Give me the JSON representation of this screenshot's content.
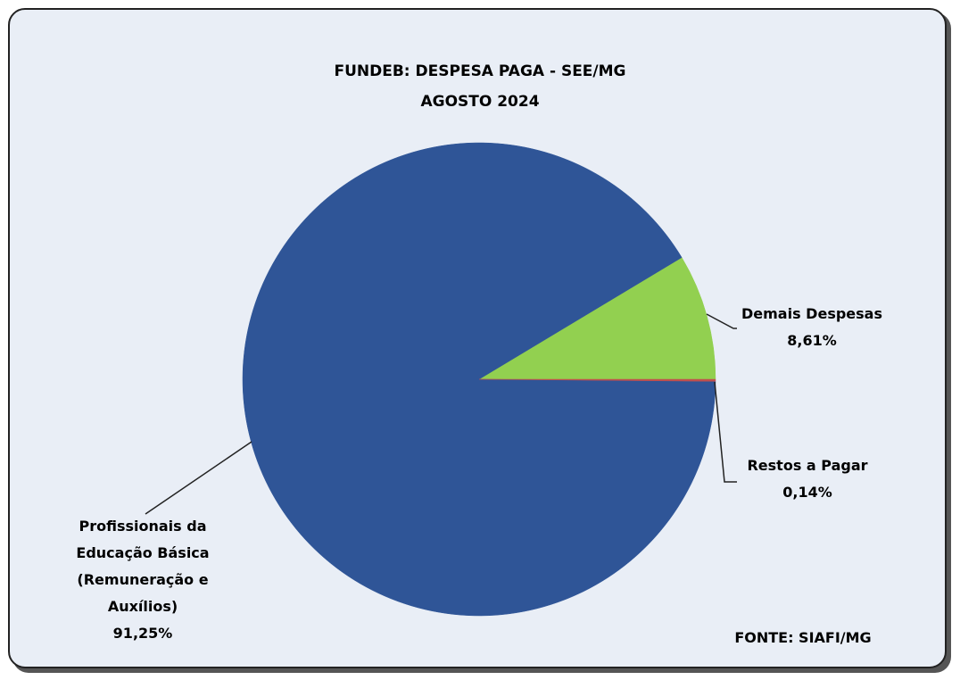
{
  "chart_data": {
    "type": "pie",
    "title": "FUNDEB: DESPESA PAGA - SEE/MG",
    "subtitle": "AGOSTO 2024",
    "categories": [
      "Demais Despesas",
      "Profissionais da Educação Básica (Remuneração e Auxílios)",
      "Restos a Pagar"
    ],
    "values": [
      8.61,
      91.25,
      0.14
    ],
    "value_labels": [
      "8,61%",
      "91,25%",
      "0,14%"
    ],
    "colors": [
      "#92d050",
      "#2f5597",
      "#c0504d"
    ],
    "source": "FONTE: SIAFI/MG"
  }
}
